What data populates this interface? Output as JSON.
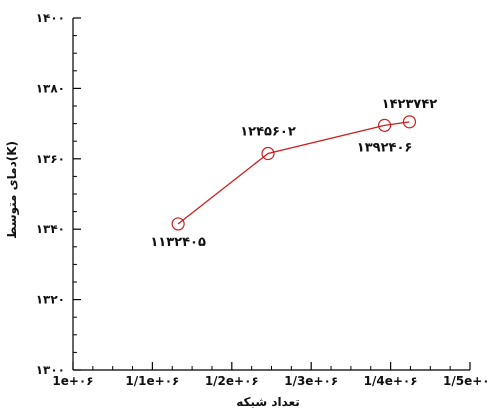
{
  "chart_data": {
    "type": "line",
    "xlabel": "تعداد شبکه",
    "ylabel": "دمای متوسط(K)",
    "x_ticks": [
      "1e+۰۶",
      "1/1e+۰۶",
      "1/2e+۰۶",
      "1/3e+۰۶",
      "1/4e+۰۶",
      "1/5e+۰۶"
    ],
    "y_ticks": [
      "۱۳۰۰",
      "۱۳۲۰",
      "۱۳۴۰",
      "۱۳۶۰",
      "۱۳۸۰",
      "۱۴۰۰"
    ],
    "xlim": [
      1000000,
      1500000
    ],
    "ylim": [
      1300,
      1400
    ],
    "grid": false,
    "series": [
      {
        "color": "#cc1f1f",
        "marker": "open-circle",
        "x": [
          1132405,
          1245602,
          1392406,
          1423742
        ],
        "y": [
          1341.5,
          1361.5,
          1369.5,
          1370.5
        ],
        "point_labels": [
          "۱۱۳۲۴۰۵",
          "۱۲۴۵۶۰۲",
          "۱۳۹۲۴۰۶",
          "۱۴۲۳۷۴۲"
        ]
      }
    ]
  }
}
